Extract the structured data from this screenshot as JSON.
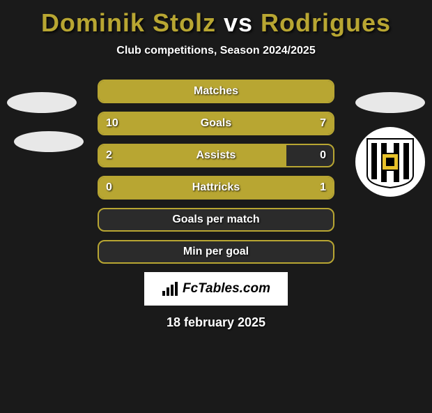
{
  "title": {
    "player1": "Dominik Stolz",
    "vs": "vs",
    "player2": "Rodrigues",
    "player1_color": "#b8a632",
    "vs_color": "#ffffff",
    "player2_color": "#b8a632"
  },
  "subtitle": "Club competitions, Season 2024/2025",
  "accent_color": "#b8a632",
  "background_color": "#1a1a1a",
  "bar_empty_fill": "#2b2b2b",
  "bar_border_color": "#b8a632",
  "stats": [
    {
      "label": "Matches",
      "left_val": "",
      "right_val": "",
      "left_pct": 100,
      "right_pct": 0,
      "left_color": "#b8a632",
      "right_color": "#b8a632"
    },
    {
      "label": "Goals",
      "left_val": "10",
      "right_val": "7",
      "left_pct": 59,
      "right_pct": 41,
      "left_color": "#b8a632",
      "right_color": "#b8a632"
    },
    {
      "label": "Assists",
      "left_val": "2",
      "right_val": "0",
      "left_pct": 80,
      "right_pct": 0,
      "left_color": "#b8a632",
      "right_color": "#b8a632"
    },
    {
      "label": "Hattricks",
      "left_val": "0",
      "right_val": "1",
      "left_pct": 0,
      "right_pct": 100,
      "left_color": "#b8a632",
      "right_color": "#b8a632"
    },
    {
      "label": "Goals per match",
      "left_val": "",
      "right_val": "",
      "left_pct": 0,
      "right_pct": 0,
      "left_color": "#b8a632",
      "right_color": "#b8a632"
    },
    {
      "label": "Min per goal",
      "left_val": "",
      "right_val": "",
      "left_pct": 0,
      "right_pct": 0,
      "left_color": "#b8a632",
      "right_color": "#b8a632"
    }
  ],
  "logo_text": "FcTables.com",
  "date": "18 february 2025",
  "crest_colors": {
    "bg": "#ffffff",
    "stripe": "#000000",
    "square": "#e8c22a"
  }
}
